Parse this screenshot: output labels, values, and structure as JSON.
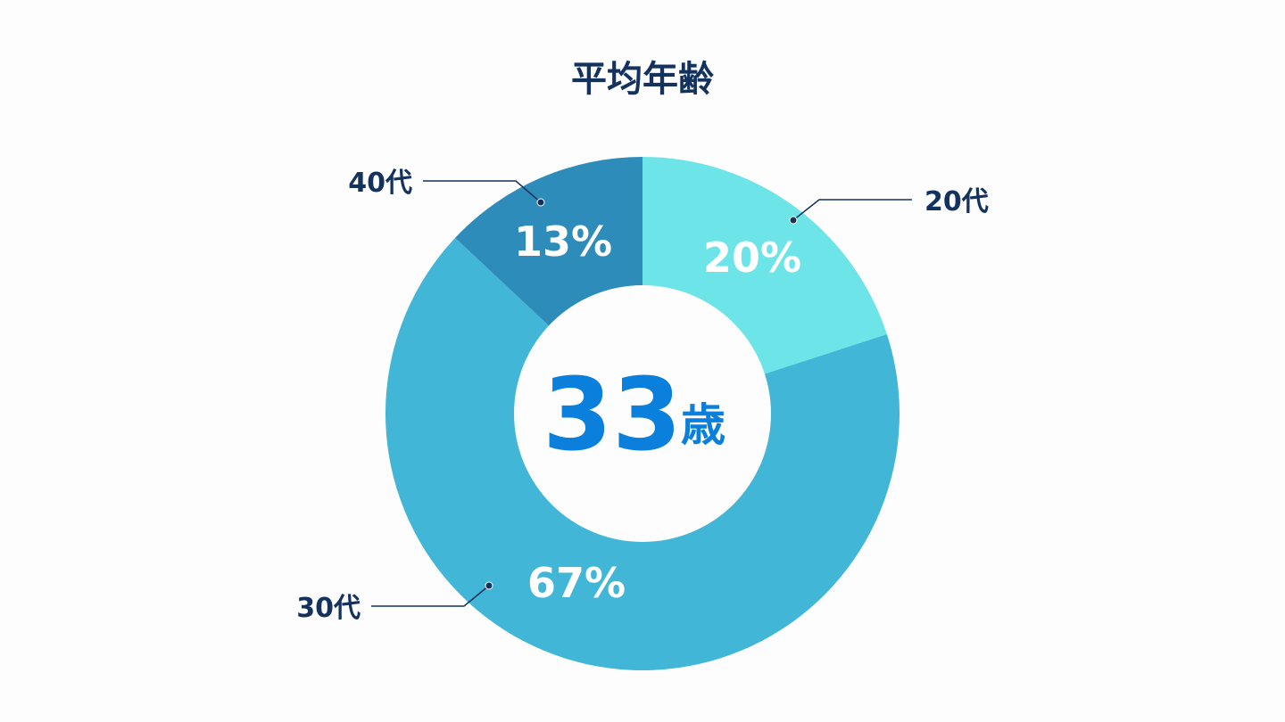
{
  "chart_data": {
    "type": "pie",
    "title": "平均年齢",
    "center_value": "33",
    "center_unit": "歳",
    "slices": [
      {
        "label": "20代",
        "value": 20,
        "value_label": "20%",
        "color": "#6ce4e8"
      },
      {
        "label": "30代",
        "value": 67,
        "value_label": "67%",
        "color": "#42b6d6"
      },
      {
        "label": "40代",
        "value": 13,
        "value_label": "13%",
        "color": "#2e8cba"
      }
    ],
    "colors": {
      "text": "#14325e",
      "center_text": "#0a7fdc",
      "background": "#fdfdfd"
    }
  }
}
